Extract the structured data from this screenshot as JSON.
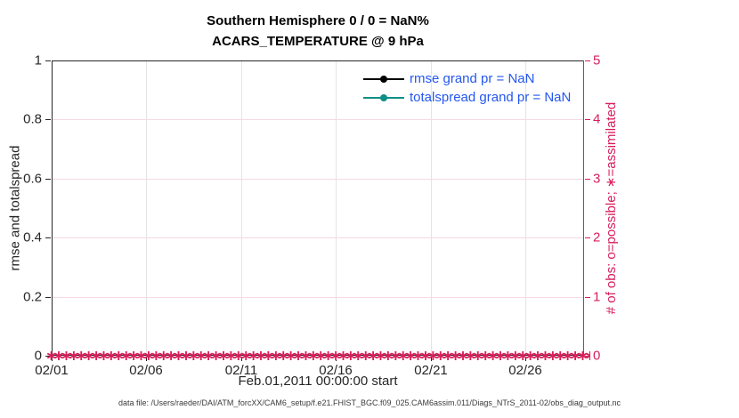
{
  "title": {
    "line1": "Southern Hemisphere 0 / 0 = NaN%",
    "line2": "ACARS_TEMPERATURE @ 9 hPa"
  },
  "footer": {
    "data_file": "data file: /Users/raeder/DAI/ATM_forcXX/CAM6_setup/f.e21.FHIST_BGC.f09_025.CAM6assim.011/Diags_NTrS_2011-02/obs_diag_output.nc"
  },
  "chart_data": {
    "type": "line",
    "title": "Southern Hemisphere 0 / 0 = NaN% — ACARS_TEMPERATURE @ 9 hPa",
    "xlabel": "Feb.01,2011 00:00:00 start",
    "x_tick_labels": [
      "02/01",
      "02/06",
      "02/11",
      "02/16",
      "02/21",
      "02/26"
    ],
    "x_tick_days": [
      0,
      5,
      10,
      15,
      20,
      25
    ],
    "x_range_days": [
      0,
      28.1
    ],
    "left_axis": {
      "label": "rmse and totalspread",
      "ticks": [
        "0",
        "0.2",
        "0.4",
        "0.6",
        "0.8",
        "1"
      ],
      "range": [
        0,
        1
      ],
      "color": "#262626"
    },
    "right_axis": {
      "label": "# of obs: o=possible; ∗=assimilated",
      "ticks": [
        "0",
        "1",
        "2",
        "3",
        "4",
        "5"
      ],
      "range": [
        0,
        5
      ],
      "color": "#D81E5B"
    },
    "series": [
      {
        "name": "rmse grand pr = NaN",
        "color": "#000000",
        "values": [],
        "all_nan": true
      },
      {
        "name": "totalspread grand pr = NaN",
        "color": "#0C8F85",
        "values": [],
        "all_nan": true
      }
    ],
    "obs_counts": {
      "possible_per_time": 0,
      "assimilated_per_time": 0,
      "marker_row_value": 0,
      "marker_symbol": "∗",
      "marker_color": "#D81E5B"
    },
    "grid": true,
    "legend_position": "upper-right-inside",
    "legend_text_color": "#2457F0"
  }
}
